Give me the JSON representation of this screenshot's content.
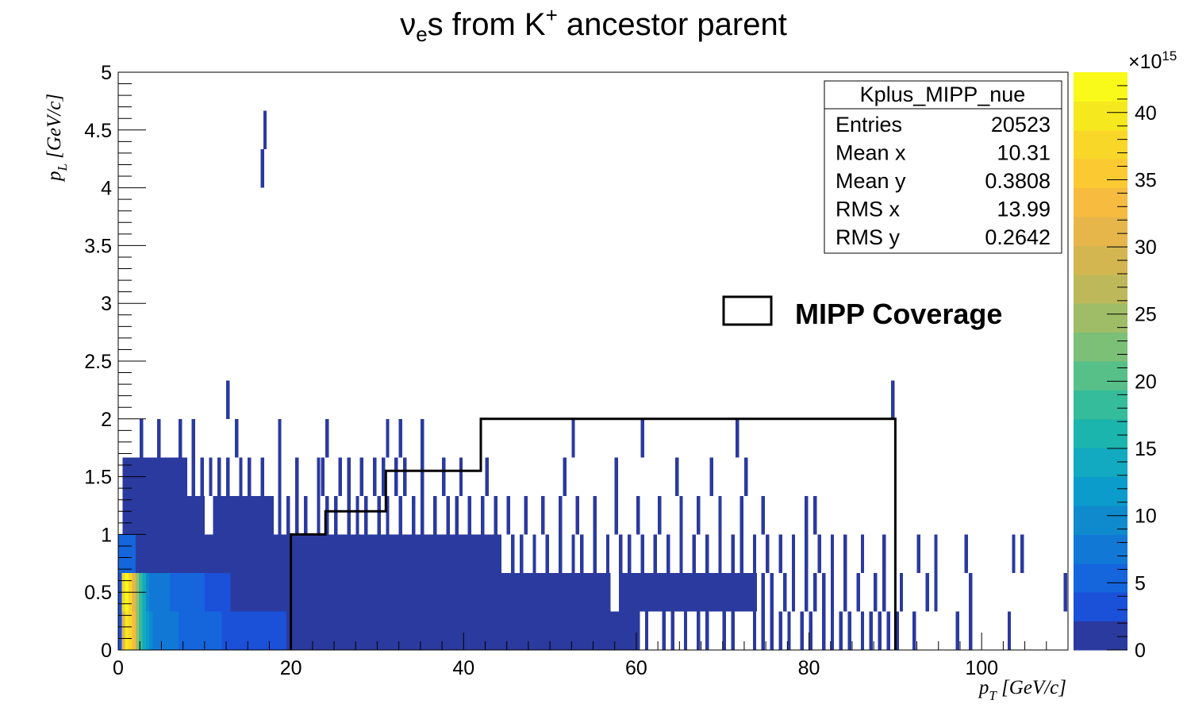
{
  "chart_data": {
    "type": "heatmap",
    "title": "νes from K+ ancestor parent",
    "title_parts": {
      "nu": "ν",
      "nu_sub": "e",
      "mid": "s from K",
      "k_sup": "+",
      "end": " ancestor parent"
    },
    "xlabel": {
      "var": "p",
      "sub": "T",
      "unit": " [GeV/c]"
    },
    "ylabel": {
      "var": "p",
      "sub": "L",
      "unit": " [GeV/c]"
    },
    "xlim": [
      0,
      110
    ],
    "ylim": [
      0,
      5
    ],
    "x_ticks": [
      "0",
      "20",
      "40",
      "60",
      "80",
      "100"
    ],
    "y_ticks": [
      "0",
      "0.5",
      "1",
      "1.5",
      "2",
      "2.5",
      "3",
      "3.5",
      "4",
      "4.5",
      "5"
    ],
    "colorbar": {
      "range": [
        0,
        43
      ],
      "exponent": "×10",
      "exponent_power": "15",
      "ticks": [
        "0",
        "5",
        "10",
        "15",
        "20",
        "25",
        "30",
        "35",
        "40"
      ],
      "palette": [
        "#2b3a9e",
        "#1b50d8",
        "#1565dd",
        "#1178d6",
        "#0e8acd",
        "#0c9ccb",
        "#12aac0",
        "#1cb5ad",
        "#35bc9a",
        "#56c088",
        "#7cbf77",
        "#9fbd67",
        "#bdb95a",
        "#d3b64f",
        "#e6b64a",
        "#f7bb3f",
        "#fbc932",
        "#f8d728",
        "#f6e81e",
        "#f9f91a"
      ]
    },
    "y_bins": [
      0,
      0.333,
      0.667,
      1.0,
      1.333,
      1.667,
      2.0,
      2.333,
      4.0,
      4.333,
      4.667
    ],
    "cells_note": "heatmap cells: [x_start, x_end, y_bin_index, colour_level]",
    "cells": [
      [
        0.0,
        0.4,
        0,
        1
      ],
      [
        0.4,
        0.8,
        0,
        14
      ],
      [
        0.8,
        1.2,
        0,
        18
      ],
      [
        1.2,
        1.6,
        0,
        17
      ],
      [
        1.6,
        2.0,
        0,
        15
      ],
      [
        2.0,
        2.4,
        0,
        11
      ],
      [
        2.4,
        2.8,
        0,
        8
      ],
      [
        2.8,
        3.2,
        0,
        6
      ],
      [
        3.2,
        3.6,
        0,
        5
      ],
      [
        3.6,
        4.0,
        0,
        4
      ],
      [
        4.0,
        7.0,
        0,
        3
      ],
      [
        7.0,
        12.0,
        0,
        2
      ],
      [
        12.0,
        19.5,
        0,
        1
      ],
      [
        19.5,
        60.0,
        0,
        0
      ],
      [
        0.0,
        0.4,
        1,
        1
      ],
      [
        0.4,
        0.8,
        1,
        17
      ],
      [
        0.8,
        1.2,
        1,
        19
      ],
      [
        1.2,
        1.6,
        1,
        17
      ],
      [
        1.6,
        2.0,
        1,
        14
      ],
      [
        2.0,
        2.4,
        1,
        11
      ],
      [
        2.4,
        2.8,
        1,
        8
      ],
      [
        2.8,
        3.2,
        1,
        6
      ],
      [
        3.2,
        3.6,
        1,
        4
      ],
      [
        3.6,
        6.0,
        1,
        3
      ],
      [
        6.0,
        10.0,
        1,
        2
      ],
      [
        10.0,
        13.0,
        1,
        1
      ],
      [
        13.0,
        57.0,
        1,
        0
      ],
      [
        58.0,
        74.0,
        1,
        0
      ],
      [
        0.0,
        2.0,
        2,
        2
      ],
      [
        2.0,
        44.0,
        2,
        0
      ],
      [
        0.5,
        10.0,
        3,
        0
      ],
      [
        11.0,
        18.0,
        3,
        0
      ],
      [
        0.5,
        8.0,
        4,
        0
      ]
    ],
    "sparse_bars": [
      [
        60,
        0,
        0
      ],
      [
        61,
        0,
        0
      ],
      [
        63,
        0,
        0
      ],
      [
        64,
        0,
        0
      ],
      [
        65.5,
        0,
        0
      ],
      [
        67,
        0,
        0
      ],
      [
        68,
        0,
        0
      ],
      [
        70,
        0,
        0
      ],
      [
        71,
        0,
        0
      ],
      [
        73.5,
        0,
        0
      ],
      [
        74.5,
        0,
        0
      ],
      [
        75.5,
        0,
        0
      ],
      [
        76.5,
        0,
        0
      ],
      [
        77.5,
        0,
        0
      ],
      [
        79,
        0,
        0
      ],
      [
        80,
        0,
        0
      ],
      [
        81.5,
        0,
        0
      ],
      [
        82.5,
        0,
        0
      ],
      [
        83.5,
        0,
        0
      ],
      [
        84.5,
        0,
        0
      ],
      [
        86,
        0,
        0
      ],
      [
        87,
        0,
        0
      ],
      [
        88,
        0,
        0
      ],
      [
        89,
        0,
        0
      ],
      [
        90,
        0,
        0
      ],
      [
        92,
        0,
        0
      ],
      [
        97,
        0,
        0
      ],
      [
        98.5,
        0,
        0
      ],
      [
        103,
        0,
        0
      ],
      [
        74.5,
        1,
        0
      ],
      [
        75.5,
        1,
        0
      ],
      [
        77,
        1,
        0
      ],
      [
        78,
        1,
        0
      ],
      [
        79.5,
        1,
        0
      ],
      [
        80.5,
        1,
        0
      ],
      [
        81.5,
        1,
        0
      ],
      [
        82.5,
        1,
        0
      ],
      [
        84,
        1,
        0
      ],
      [
        85.5,
        1,
        0
      ],
      [
        87.5,
        1,
        0
      ],
      [
        88.5,
        1,
        0
      ],
      [
        90.5,
        1,
        0
      ],
      [
        93.5,
        1,
        0
      ],
      [
        94.5,
        1,
        0
      ],
      [
        98.5,
        1,
        0
      ],
      [
        109.5,
        1,
        0
      ],
      [
        44,
        2,
        0
      ],
      [
        45.5,
        2,
        0
      ],
      [
        46.5,
        2,
        0
      ],
      [
        48,
        2,
        0
      ],
      [
        49.5,
        2,
        0
      ],
      [
        51,
        2,
        0
      ],
      [
        52.5,
        2,
        0
      ],
      [
        53.5,
        2,
        0
      ],
      [
        55,
        2,
        0
      ],
      [
        56.5,
        2,
        0
      ],
      [
        58,
        2,
        0
      ],
      [
        59,
        2,
        0
      ],
      [
        60.5,
        2,
        0
      ],
      [
        62,
        2,
        0
      ],
      [
        63.5,
        2,
        0
      ],
      [
        65,
        2,
        0
      ],
      [
        66.5,
        2,
        0
      ],
      [
        68,
        2,
        0
      ],
      [
        69.5,
        2,
        0
      ],
      [
        71,
        2,
        0
      ],
      [
        72,
        2,
        0
      ],
      [
        73.5,
        2,
        0
      ],
      [
        75,
        2,
        0
      ],
      [
        76.5,
        2,
        0
      ],
      [
        78,
        2,
        0
      ],
      [
        79.5,
        2,
        0
      ],
      [
        81,
        2,
        0
      ],
      [
        82.5,
        2,
        0
      ],
      [
        84,
        2,
        0
      ],
      [
        86,
        2,
        0
      ],
      [
        88.5,
        2,
        0
      ],
      [
        92.5,
        2,
        0
      ],
      [
        94.5,
        2,
        0
      ],
      [
        98,
        2,
        0
      ],
      [
        103.5,
        2,
        0
      ],
      [
        104.5,
        2,
        0
      ],
      [
        18.5,
        3,
        0
      ],
      [
        19.5,
        3,
        0
      ],
      [
        20.5,
        3,
        0
      ],
      [
        21.5,
        3,
        0
      ],
      [
        23,
        3,
        0
      ],
      [
        24,
        3,
        0
      ],
      [
        25,
        3,
        0
      ],
      [
        26.5,
        3,
        0
      ],
      [
        27.5,
        3,
        0
      ],
      [
        28.5,
        3,
        0
      ],
      [
        30,
        3,
        0
      ],
      [
        31,
        3,
        0
      ],
      [
        32.5,
        3,
        0
      ],
      [
        34,
        3,
        0
      ],
      [
        35,
        3,
        0
      ],
      [
        36.5,
        3,
        0
      ],
      [
        38,
        3,
        0
      ],
      [
        39,
        3,
        0
      ],
      [
        40.5,
        3,
        0
      ],
      [
        42,
        3,
        0
      ],
      [
        43.5,
        3,
        0
      ],
      [
        45,
        3,
        0
      ],
      [
        47,
        3,
        0
      ],
      [
        49,
        3,
        0
      ],
      [
        51,
        3,
        0
      ],
      [
        53,
        3,
        0
      ],
      [
        55,
        3,
        0
      ],
      [
        57.5,
        3,
        0
      ],
      [
        60,
        3,
        0
      ],
      [
        62.5,
        3,
        0
      ],
      [
        65,
        3,
        0
      ],
      [
        67,
        3,
        0
      ],
      [
        69.5,
        3,
        0
      ],
      [
        72,
        3,
        0
      ],
      [
        74.5,
        3,
        0
      ],
      [
        79.5,
        3,
        0
      ],
      [
        80.5,
        3,
        0
      ],
      [
        8.5,
        4,
        0
      ],
      [
        9.5,
        4,
        0
      ],
      [
        10.5,
        4,
        0
      ],
      [
        11.5,
        4,
        0
      ],
      [
        12.5,
        4,
        0
      ],
      [
        14,
        4,
        0
      ],
      [
        15,
        4,
        0
      ],
      [
        16.5,
        4,
        0
      ],
      [
        18.5,
        4,
        0
      ],
      [
        20.5,
        4,
        0
      ],
      [
        23,
        4,
        0
      ],
      [
        23.5,
        4,
        0
      ],
      [
        25.5,
        4,
        0
      ],
      [
        26.5,
        4,
        0
      ],
      [
        28,
        4,
        0
      ],
      [
        29.5,
        4,
        0
      ],
      [
        30.5,
        4,
        0
      ],
      [
        32,
        4,
        0
      ],
      [
        33,
        4,
        0
      ],
      [
        35,
        4,
        0
      ],
      [
        37.5,
        4,
        0
      ],
      [
        39.5,
        4,
        0
      ],
      [
        42.5,
        4,
        0
      ],
      [
        51.5,
        4,
        0
      ],
      [
        57.5,
        4,
        0
      ],
      [
        64.5,
        4,
        0
      ],
      [
        68.5,
        4,
        0
      ],
      [
        72.5,
        4,
        0
      ],
      [
        2.5,
        5,
        0
      ],
      [
        4.5,
        5,
        0
      ],
      [
        7,
        5,
        0
      ],
      [
        8.5,
        5,
        0
      ],
      [
        13.5,
        5,
        0
      ],
      [
        18.5,
        5,
        0
      ],
      [
        24,
        5,
        0
      ],
      [
        31,
        5,
        0
      ],
      [
        32.5,
        5,
        0
      ],
      [
        35,
        5,
        0
      ],
      [
        52.5,
        5,
        0
      ],
      [
        60.5,
        5,
        0
      ],
      [
        71.5,
        5,
        0
      ],
      [
        12.5,
        6,
        0
      ],
      [
        89.5,
        6,
        0
      ],
      [
        16.5,
        8,
        0
      ],
      [
        16.8,
        9,
        0
      ]
    ],
    "mipp_coverage": {
      "steps": [
        [
          20,
          0
        ],
        [
          20,
          1.0
        ],
        [
          24,
          1.0
        ],
        [
          24,
          1.2
        ],
        [
          31,
          1.2
        ],
        [
          31,
          1.55
        ],
        [
          42,
          1.55
        ],
        [
          42,
          2.0
        ],
        [
          90,
          2.0
        ],
        [
          90,
          0
        ]
      ]
    },
    "legend": {
      "label": "MIPP Coverage",
      "placement": "right-center"
    },
    "stats_box": {
      "title": "Kplus_MIPP_nue",
      "rows": [
        {
          "label": "Entries",
          "value": "20523"
        },
        {
          "label": "Mean x",
          "value": "10.31"
        },
        {
          "label": "Mean y",
          "value": "0.3808"
        },
        {
          "label": "RMS x",
          "value": "13.99"
        },
        {
          "label": "RMS y",
          "value": "0.2642"
        }
      ],
      "placement": "top-right"
    }
  }
}
